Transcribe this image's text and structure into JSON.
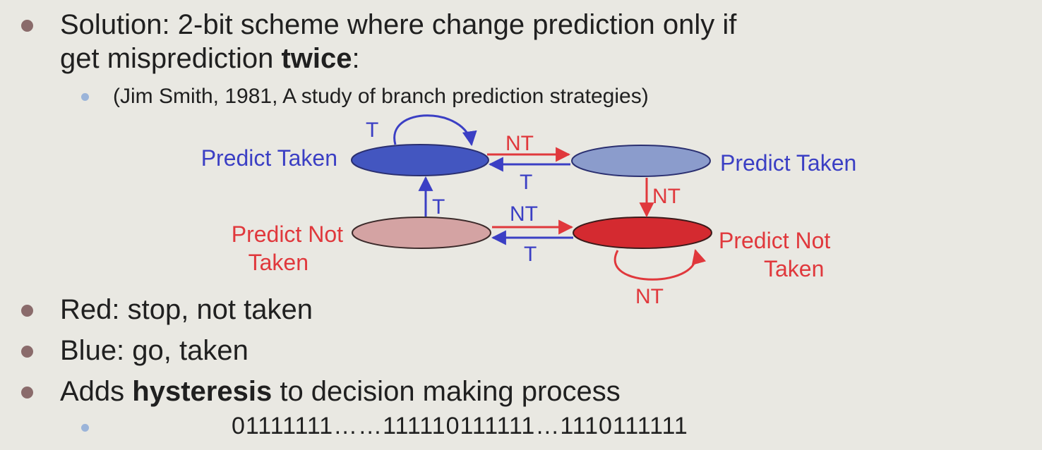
{
  "bullets": {
    "b1_line1": "Solution: 2-bit scheme where change prediction only if",
    "b1_line2_pre": "get misprediction ",
    "b1_line2_bold": "twice",
    "b1_line2_post": ":",
    "b1_sub": "(Jim Smith, 1981, A study of branch prediction strategies)",
    "b2": "Red: stop, not taken",
    "b3": "Blue: go, taken",
    "b4_pre": "Adds ",
    "b4_bold": "hysteresis",
    "b4_post": " to decision making process",
    "b4_sub": "01111111……111110111111…1110111111"
  },
  "diagram": {
    "states": {
      "top_left": "Predict Taken",
      "top_right": "Predict Taken",
      "bottom_left_line1": "Predict Not",
      "bottom_left_line2": "Taken",
      "bottom_right_line1": "Predict Not",
      "bottom_right_line2": "Taken"
    },
    "edges": {
      "self_top_left": "T",
      "top_left_to_top_right": "NT",
      "top_right_to_top_left": "T",
      "top_right_to_bottom_right": "NT",
      "bottom_left_to_top_left": "T",
      "bottom_left_to_bottom_right": "NT",
      "bottom_right_to_bottom_left": "T",
      "self_bottom_right": "NT"
    },
    "colors": {
      "blue_text": "#3b3fc4",
      "red_text": "#e0383c",
      "strong_taken": "#4356c0",
      "weak_taken": "#8b9ccc",
      "weak_not_taken": "#d4a3a3",
      "strong_not_taken": "#d42a30"
    }
  }
}
